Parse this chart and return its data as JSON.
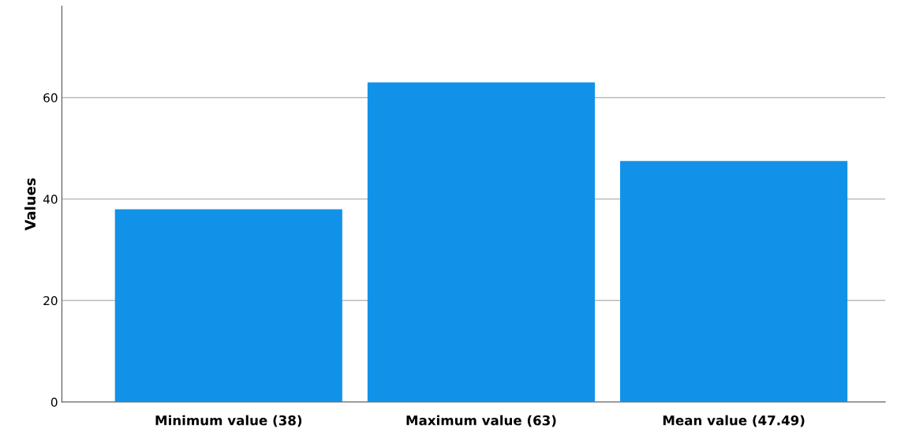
{
  "chart_data": {
    "type": "bar",
    "ylabel": "Values",
    "categories": [
      "Minimum value (38)",
      "Maximum value (63)",
      "Mean value (47.49)"
    ],
    "values": [
      38,
      63,
      47.49
    ],
    "color": "#1192e8",
    "ylim": [
      0,
      78
    ],
    "yticks": [
      0,
      20,
      40,
      60
    ],
    "grid": "y",
    "legend": false
  }
}
